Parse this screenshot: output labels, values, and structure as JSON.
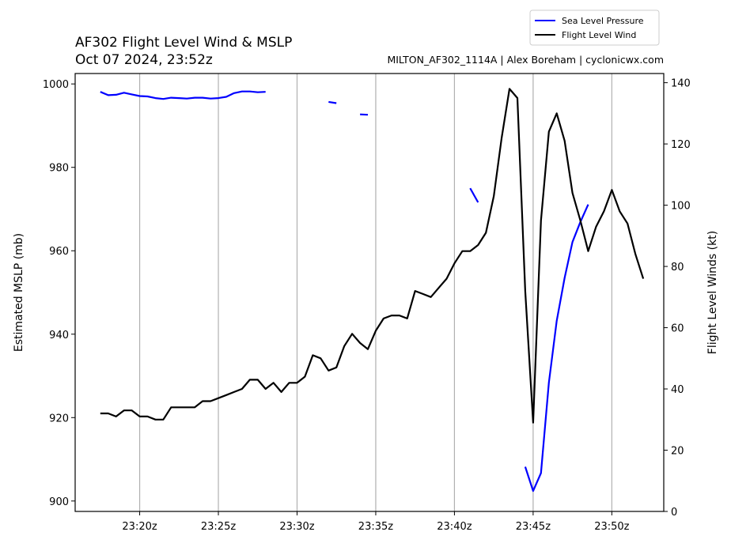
{
  "chart_data": {
    "type": "line",
    "title": "AF302 Flight Level Wind & MSLP",
    "subtitle": "Oct 07 2024, 23:52z",
    "credit": "MILTON_AF302_1114A | Alex Boreham | cyclonicwx.com",
    "xlabel": "",
    "ylabel_left": "Estimated MSLP (mb)",
    "ylabel_right": "Flight Level Winds (kt)",
    "x_ticks": [
      "23:20z",
      "23:25z",
      "23:30z",
      "23:35z",
      "23:40z",
      "23:45z",
      "23:50z"
    ],
    "x_tick_minutes": [
      20,
      25,
      30,
      35,
      40,
      45,
      50
    ],
    "xlim_minutes_after_2300": [
      15.9,
      53.3
    ],
    "ylim_left": [
      897.5,
      1002.5
    ],
    "ylim_right": [
      0,
      143
    ],
    "y_ticks_left": [
      900,
      920,
      940,
      960,
      980,
      1000
    ],
    "y_ticks_right": [
      0,
      20,
      40,
      60,
      80,
      100,
      120,
      140
    ],
    "grid": "vertical",
    "legend_position": "top-right",
    "colors": {
      "pressure": "#0000ff",
      "wind": "#000000"
    },
    "series": [
      {
        "name": "Sea Level Pressure",
        "axis": "left",
        "segments": [
          [
            [
              17.5,
              998.1
            ],
            [
              18.0,
              997.3
            ],
            [
              18.5,
              997.4
            ],
            [
              19.0,
              997.9
            ],
            [
              19.5,
              997.5
            ],
            [
              20.0,
              997.1
            ],
            [
              20.5,
              997.0
            ],
            [
              21.0,
              996.6
            ],
            [
              21.5,
              996.4
            ],
            [
              22.0,
              996.7
            ],
            [
              22.5,
              996.6
            ],
            [
              23.0,
              996.5
            ],
            [
              23.5,
              996.7
            ],
            [
              24.0,
              996.7
            ],
            [
              24.5,
              996.5
            ],
            [
              25.0,
              996.6
            ],
            [
              25.5,
              996.9
            ],
            [
              26.0,
              997.8
            ],
            [
              26.5,
              998.2
            ],
            [
              27.0,
              998.2
            ],
            [
              27.5,
              998.0
            ],
            [
              28.0,
              998.1
            ]
          ],
          [
            [
              32.0,
              995.7
            ],
            [
              32.5,
              995.4
            ]
          ],
          [
            [
              34.0,
              992.7
            ],
            [
              34.5,
              992.6
            ]
          ],
          [
            [
              41.0,
              975.0
            ],
            [
              41.5,
              971.6
            ]
          ],
          [
            [
              44.5,
              908.2
            ],
            [
              45.0,
              902.4
            ],
            [
              45.5,
              906.7
            ],
            [
              46.0,
              928.4
            ],
            [
              46.5,
              943.2
            ],
            [
              47.0,
              953.5
            ],
            [
              47.5,
              962.1
            ],
            [
              48.0,
              966.9
            ],
            [
              48.5,
              971.1
            ]
          ]
        ]
      },
      {
        "name": "Flight Level Wind",
        "axis": "right",
        "segments": [
          [
            [
              17.5,
              32
            ],
            [
              18.0,
              32
            ],
            [
              18.5,
              31
            ],
            [
              19.0,
              33
            ],
            [
              19.5,
              33
            ],
            [
              20.0,
              31
            ],
            [
              20.5,
              31
            ],
            [
              21.0,
              30
            ],
            [
              21.5,
              30
            ],
            [
              22.0,
              34
            ],
            [
              22.5,
              34
            ],
            [
              23.0,
              34
            ],
            [
              23.5,
              34
            ],
            [
              24.0,
              36
            ],
            [
              24.5,
              36
            ],
            [
              25.0,
              37
            ],
            [
              25.5,
              38
            ],
            [
              26.0,
              39
            ],
            [
              26.5,
              40
            ],
            [
              27.0,
              43
            ],
            [
              27.5,
              43
            ],
            [
              28.0,
              40
            ],
            [
              28.5,
              42
            ],
            [
              29.0,
              39
            ],
            [
              29.5,
              42
            ],
            [
              30.0,
              42
            ],
            [
              30.5,
              44
            ],
            [
              31.0,
              51
            ],
            [
              31.5,
              50
            ],
            [
              32.0,
              46
            ],
            [
              32.5,
              47
            ],
            [
              33.0,
              54
            ],
            [
              33.5,
              58
            ],
            [
              34.0,
              55
            ],
            [
              34.5,
              53
            ],
            [
              35.0,
              59
            ],
            [
              35.5,
              63
            ],
            [
              36.0,
              64
            ],
            [
              36.5,
              64
            ],
            [
              37.0,
              63
            ],
            [
              37.5,
              72
            ],
            [
              38.0,
              71
            ],
            [
              38.5,
              70
            ],
            [
              39.0,
              73
            ],
            [
              39.5,
              76
            ],
            [
              40.0,
              81
            ],
            [
              40.5,
              85
            ],
            [
              41.0,
              85
            ],
            [
              41.5,
              87
            ],
            [
              42.0,
              91
            ],
            [
              42.5,
              103
            ],
            [
              43.0,
              122
            ],
            [
              43.5,
              138
            ],
            [
              44.0,
              135
            ],
            [
              44.5,
              72
            ],
            [
              45.0,
              29
            ],
            [
              45.5,
              95
            ],
            [
              46.0,
              124
            ],
            [
              46.5,
              130
            ],
            [
              47.0,
              121
            ],
            [
              47.5,
              104
            ],
            [
              48.0,
              95
            ],
            [
              48.5,
              85
            ],
            [
              49.0,
              93
            ],
            [
              49.5,
              98
            ],
            [
              50.0,
              105
            ],
            [
              50.5,
              98
            ],
            [
              51.0,
              94
            ],
            [
              51.5,
              84
            ],
            [
              52.0,
              76
            ]
          ]
        ]
      }
    ]
  }
}
